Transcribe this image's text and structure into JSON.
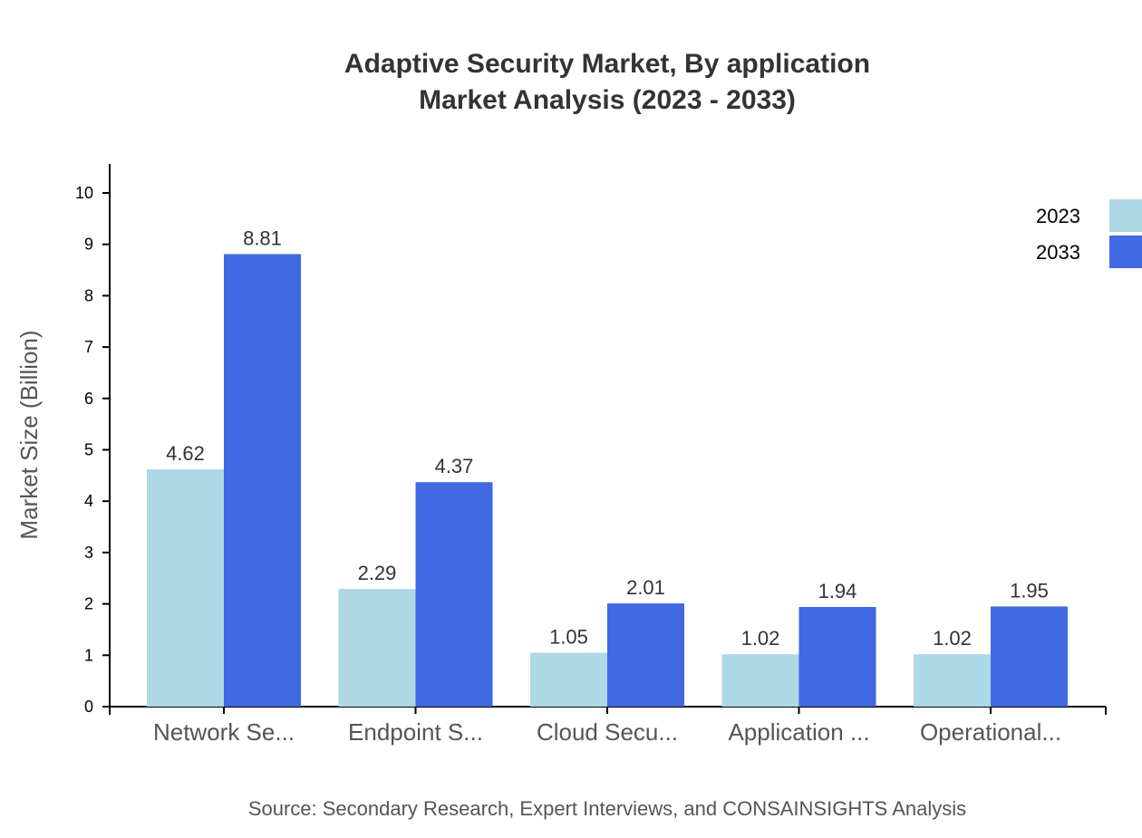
{
  "chart_data": {
    "type": "bar",
    "title": "Adaptive Security Market, By application",
    "subtitle": "Market Analysis (2023 - 2033)",
    "xlabel": "",
    "ylabel": "Market Size (Billion)",
    "ylim": [
      0,
      10.5
    ],
    "yticks": [
      "0",
      "1",
      "2",
      "3",
      "4",
      "5",
      "6",
      "7",
      "8",
      "9",
      "10"
    ],
    "categories": [
      "Network Se...",
      "Endpoint S...",
      "Cloud Secu...",
      "Application ...",
      "Operational..."
    ],
    "series": [
      {
        "name": "2023",
        "color": "#add8e6",
        "values": [
          4.62,
          2.29,
          1.05,
          1.02,
          1.02
        ]
      },
      {
        "name": "2033",
        "color": "#4169e1",
        "values": [
          8.81,
          4.37,
          2.01,
          1.94,
          1.95
        ]
      }
    ],
    "grid": false,
    "legend": "top-right",
    "source": "Source: Secondary Research, Expert Interviews, and CONSAINSIGHTS Analysis"
  }
}
